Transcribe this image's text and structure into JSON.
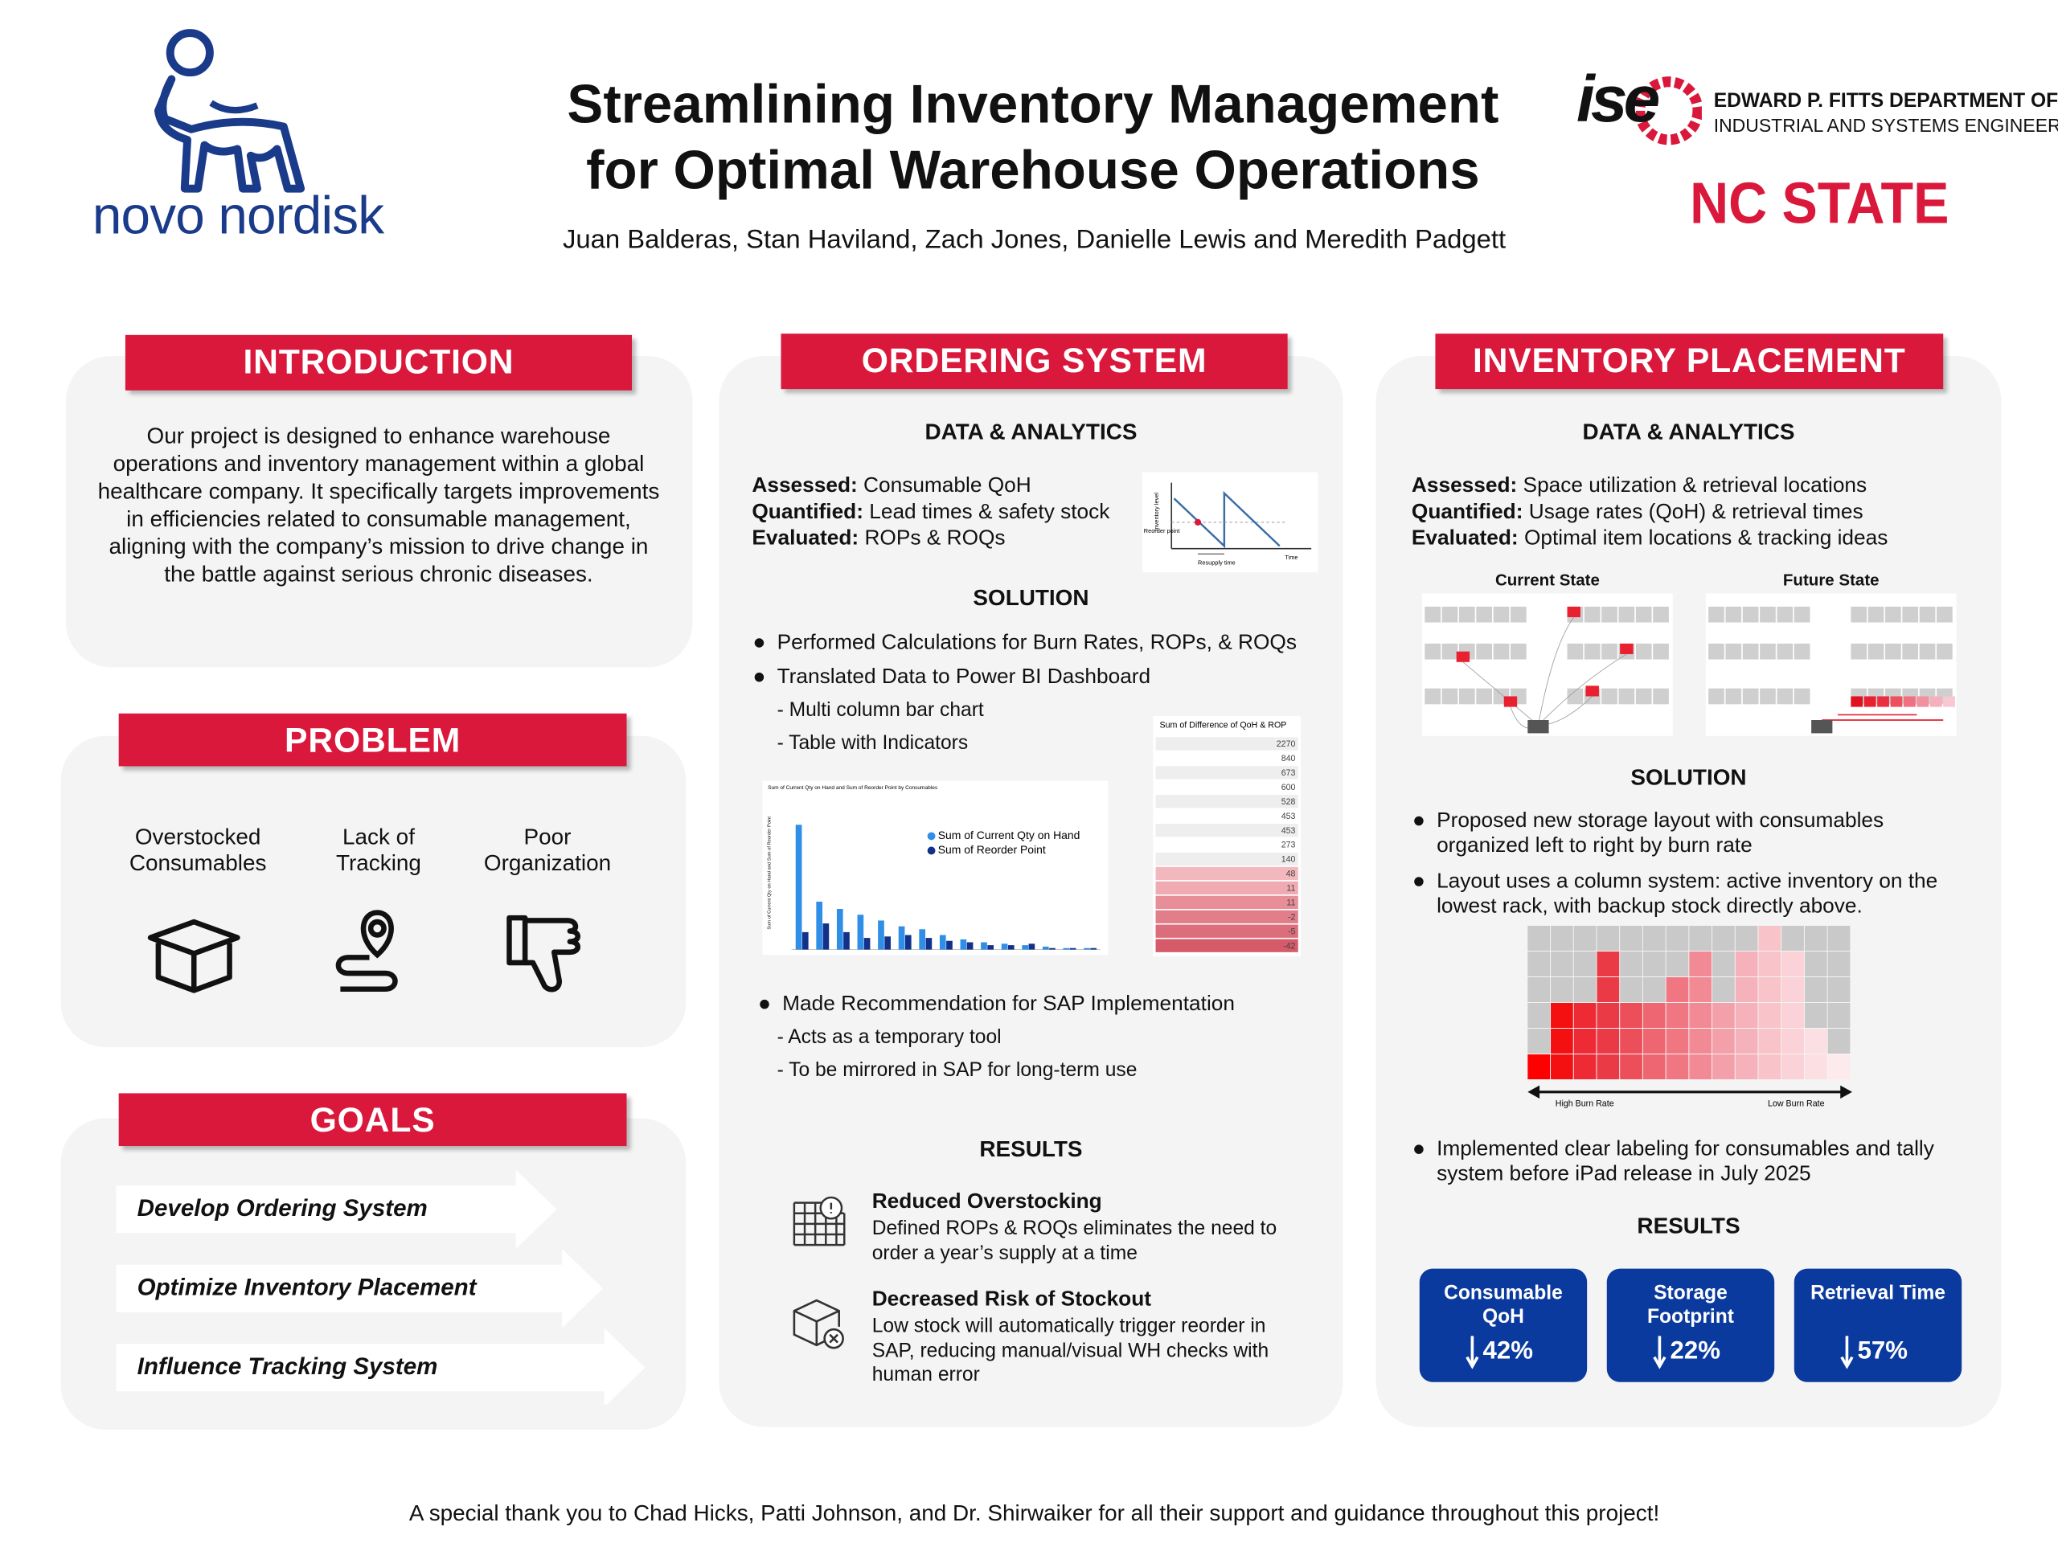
{
  "header": {
    "title_lines": [
      "Streamlining Inventory Management",
      "for Optimal Warehouse Operations"
    ],
    "authors": "Juan Balderas, Stan Haviland, Zach Jones, Danielle Lewis and Meredith Padgett",
    "left_logo": "novo nordisk",
    "right_logo_mark": "ise",
    "right_logo_lines": [
      "EDWARD P. FITTS DEPARTMENT OF",
      "INDUSTRIAL AND SYSTEMS ENGINEERING"
    ],
    "university": "NC STATE"
  },
  "introduction": {
    "heading": "INTRODUCTION",
    "text": "Our project is designed to enhance warehouse operations and inventory management within a global healthcare company. It specifically targets improvements in efficiencies related to consumable management, aligning with the company’s mission to drive change in the battle against serious chronic diseases."
  },
  "problem": {
    "heading": "PROBLEM",
    "items": [
      "Overstocked Consumables",
      "Lack of Tracking",
      "Poor Organization"
    ]
  },
  "goals": {
    "heading": "GOALS",
    "items": [
      "Develop Ordering System",
      "Optimize Inventory Placement",
      "Influence Tracking System"
    ]
  },
  "ordering": {
    "heading": "ORDERING SYSTEM",
    "data_heading": "DATA & ANALYTICS",
    "analysis": [
      {
        "term": "Assessed:",
        "text": " Consumable QoH"
      },
      {
        "term": "Quantified:",
        "text": " Lead times & safety stock"
      },
      {
        "term": "Evaluated:",
        "text": " ROPs & ROQs"
      }
    ],
    "mini_graph": {
      "y_label": "Inventory level",
      "reorder": "Reorder point",
      "resupply": "Resupply time",
      "x_label": "Time"
    },
    "solution_heading": "SOLUTION",
    "bullets": [
      "Performed Calculations for Burn Rates, ROPs, & ROQs",
      "Translated Data to Power BI Dashboard"
    ],
    "sub_items": [
      "- Multi column bar chart",
      "- Table with Indicators"
    ],
    "bar_chart": {
      "title": "Sum of Current Qty on Hand and Sum of Reorder Point by Consumables",
      "y_label": "Sum of Current Qty on Hand and Sum of Reorder Point",
      "ylim": [
        0,
        100
      ],
      "series": [
        {
          "name": "Sum of Current Qty on Hand",
          "color": "#2f8ee6",
          "values": [
            86,
            33,
            28,
            24,
            20,
            16,
            14,
            10,
            7,
            5,
            4,
            3,
            2,
            1,
            1
          ]
        },
        {
          "name": "Sum of Reorder Point",
          "color": "#12318a",
          "values": [
            12,
            18,
            12,
            8,
            9,
            10,
            8,
            6,
            5,
            3,
            3,
            4,
            1,
            1,
            1
          ]
        }
      ]
    },
    "table": {
      "title": "Sum of Difference of QoH & ROP",
      "values": [
        2270,
        840,
        673,
        600,
        528,
        453,
        453,
        273,
        140,
        48,
        11,
        11,
        -2,
        -5,
        -42
      ]
    },
    "bullet_3": "Made Recommendation for SAP Implementation",
    "sub_items_2": [
      "- Acts as a temporary tool",
      "- To be mirrored in SAP for long-term use"
    ],
    "results_heading": "RESULTS",
    "results": [
      {
        "title": "Reduced Overstocking",
        "text": "Defined ROPs & ROQs eliminates the need to order a year’s supply at a time"
      },
      {
        "title": "Decreased Risk of Stockout",
        "text": "Low stock will automatically trigger reorder in SAP, reducing manual/visual WH checks with human error"
      }
    ]
  },
  "placement": {
    "heading": "INVENTORY PLACEMENT",
    "data_heading": "DATA & ANALYTICS",
    "analysis": [
      {
        "term": "Assessed:",
        "text": " Space utilization & retrieval locations"
      },
      {
        "term": "Quantified:",
        "text": " Usage rates (QoH) & retrieval times"
      },
      {
        "term": "Evaluated:",
        "text": " Optimal item locations & tracking ideas"
      }
    ],
    "current_state": "Current State",
    "future_state": "Future State",
    "solution_heading": "SOLUTION",
    "bullets": [
      "Proposed new storage layout with consumables organized left to right by burn rate",
      "Layout uses a column system: active inventory on the lowest rack, with backup stock directly above."
    ],
    "heatmap_labels": [
      "High Burn Rate",
      "Low Burn Rate"
    ],
    "bullet_3": "Implemented clear labeling for consumables and tally system before iPad release in July 2025",
    "results_heading": "RESULTS",
    "metrics": [
      {
        "label": "Consumable QoH",
        "value": "42%"
      },
      {
        "label": "Storage Footprint",
        "value": "22%"
      },
      {
        "label": "Retrieval Time",
        "value": "57%"
      }
    ]
  },
  "footer": "A special thank you to Chad Hicks, Patti Johnson, and Dr. Shirwaiker for all their support and guidance throughout this project!"
}
